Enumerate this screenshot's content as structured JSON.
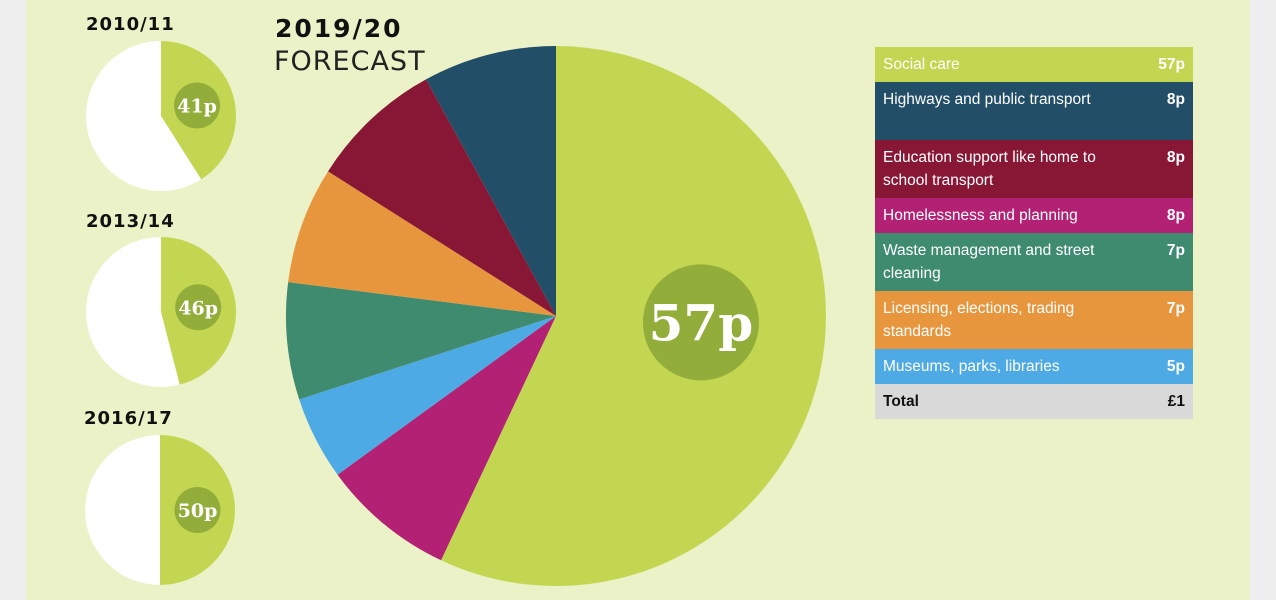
{
  "chart_data": [
    {
      "type": "pie",
      "title": "2010/11",
      "slices": [
        {
          "value": 41,
          "label": "41p",
          "color": "#c3d651"
        },
        {
          "value": 59,
          "label": "",
          "color": "#ffffff"
        }
      ]
    },
    {
      "type": "pie",
      "title": "2013/14",
      "slices": [
        {
          "value": 46,
          "label": "46p",
          "color": "#c3d651"
        },
        {
          "value": 54,
          "label": "",
          "color": "#ffffff"
        }
      ]
    },
    {
      "type": "pie",
      "title": "2016/17",
      "slices": [
        {
          "value": 50,
          "label": "50p",
          "color": "#c3d651"
        },
        {
          "value": 50,
          "label": "",
          "color": "#ffffff"
        }
      ]
    },
    {
      "type": "pie",
      "title": "2019/20",
      "subtitle": "FORECAST",
      "center_label": "57p",
      "categories": [
        "Social care",
        "Highways and public transport",
        "Education support like home to school transport",
        "Homelessness and planning",
        "Waste management and street cleaning",
        "Licensing, elections, trading standards",
        "Museums, parks, libraries"
      ],
      "values": [
        57,
        8,
        8,
        8,
        7,
        7,
        5
      ],
      "display_values": [
        "57p",
        "8p",
        "8p",
        "8p",
        "7p",
        "7p",
        "5p"
      ],
      "colors": [
        "#c3d651",
        "#224e68",
        "#881735",
        "#b32174",
        "#3e8b6f",
        "#e8963e",
        "#4eaae4"
      ],
      "draw_order": [
        0,
        3,
        6,
        4,
        5,
        2,
        1
      ],
      "legend": {
        "placement": "right",
        "total_label": "Total",
        "total_value": "£1"
      }
    }
  ]
}
